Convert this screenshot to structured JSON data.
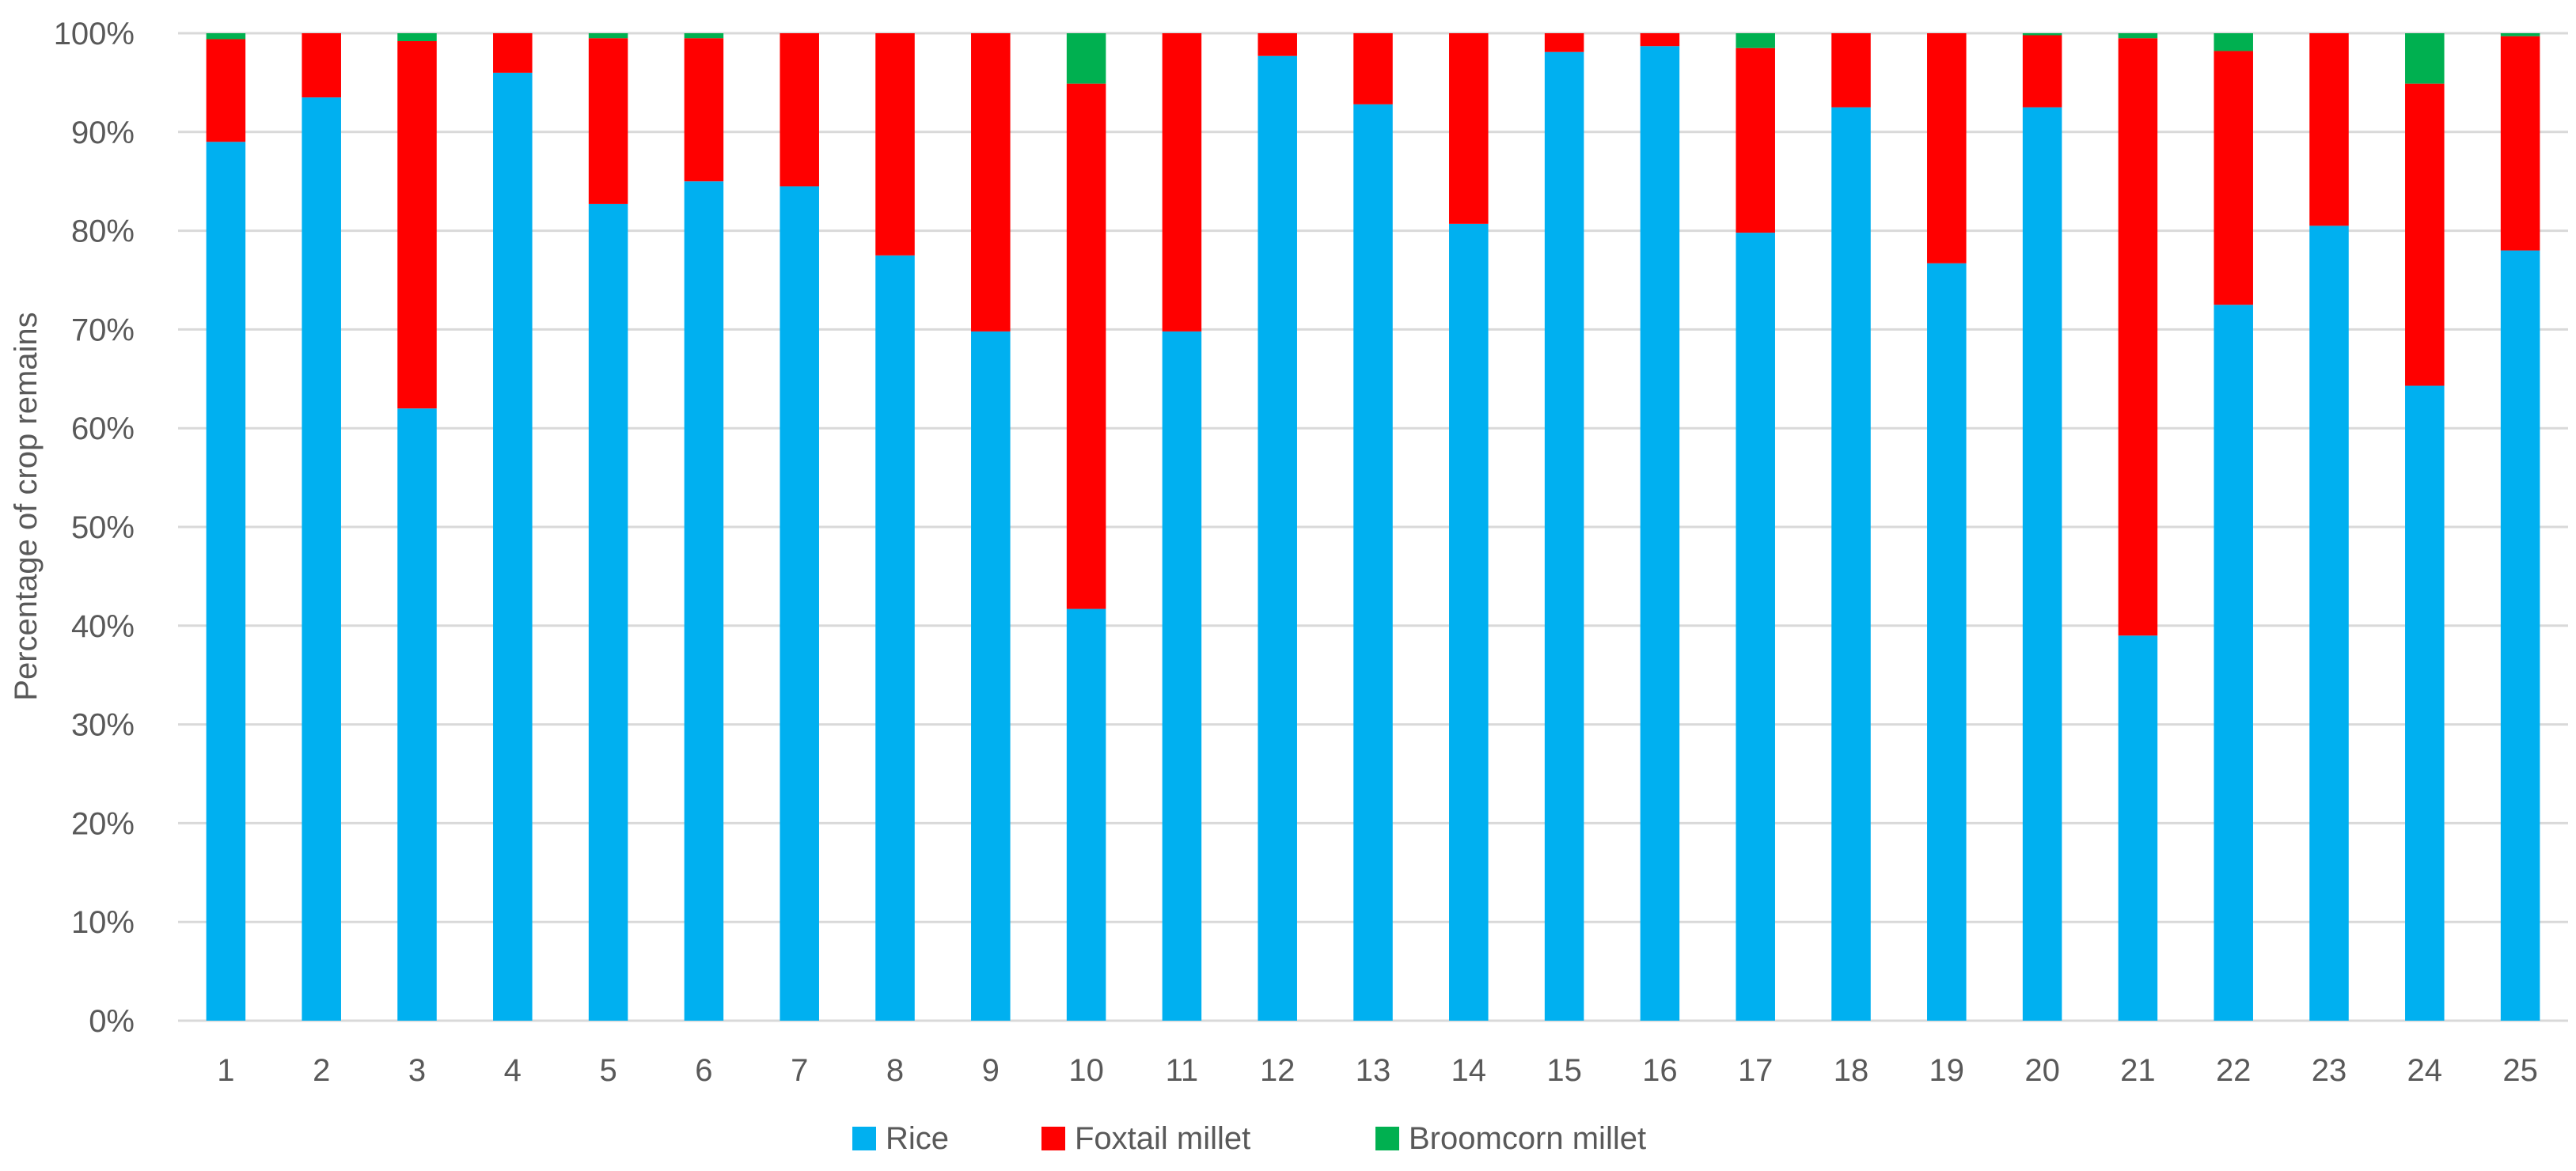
{
  "chart_data": {
    "type": "bar",
    "stacked": "percent",
    "title": "",
    "xlabel": "",
    "ylabel": "Percentage of crop remains",
    "ylim": [
      0,
      100
    ],
    "y_ticks": [
      "0%",
      "10%",
      "20%",
      "30%",
      "40%",
      "50%",
      "60%",
      "70%",
      "80%",
      "90%",
      "100%"
    ],
    "grid": "horizontal",
    "legend_position": "bottom",
    "categories": [
      "1",
      "2",
      "3",
      "4",
      "5",
      "6",
      "7",
      "8",
      "9",
      "10",
      "11",
      "12",
      "13",
      "14",
      "15",
      "16",
      "17",
      "18",
      "19",
      "20",
      "21",
      "22",
      "23",
      "24",
      "25"
    ],
    "series": [
      {
        "name": "Rice",
        "color": "#00B0F0",
        "values": [
          89,
          93.5,
          62,
          96,
          82.7,
          85,
          84.5,
          77.5,
          69.8,
          41.7,
          69.8,
          97.7,
          92.8,
          80.7,
          98.1,
          98.7,
          79.8,
          92.5,
          76.7,
          92.5,
          39,
          72.5,
          80.5,
          64.3,
          78
        ]
      },
      {
        "name": "Foxtail millet",
        "color": "#FF0000",
        "values": [
          10.4,
          6.5,
          37.2,
          4,
          16.8,
          14.5,
          15.5,
          22.5,
          30.2,
          53.2,
          30.2,
          2.3,
          7.2,
          19.3,
          1.9,
          1.3,
          18.7,
          7.5,
          23.3,
          7.3,
          60.5,
          25.7,
          19.5,
          30.6,
          21.7
        ]
      },
      {
        "name": "Broomcorn millet",
        "color": "#00B050",
        "values": [
          0.6,
          0,
          0.8,
          0,
          0.5,
          0.5,
          0,
          0,
          0,
          5.1,
          0,
          0,
          0,
          0,
          0,
          0,
          1.5,
          0,
          0,
          0.2,
          0.5,
          1.8,
          0,
          5.1,
          0.3
        ]
      }
    ]
  }
}
